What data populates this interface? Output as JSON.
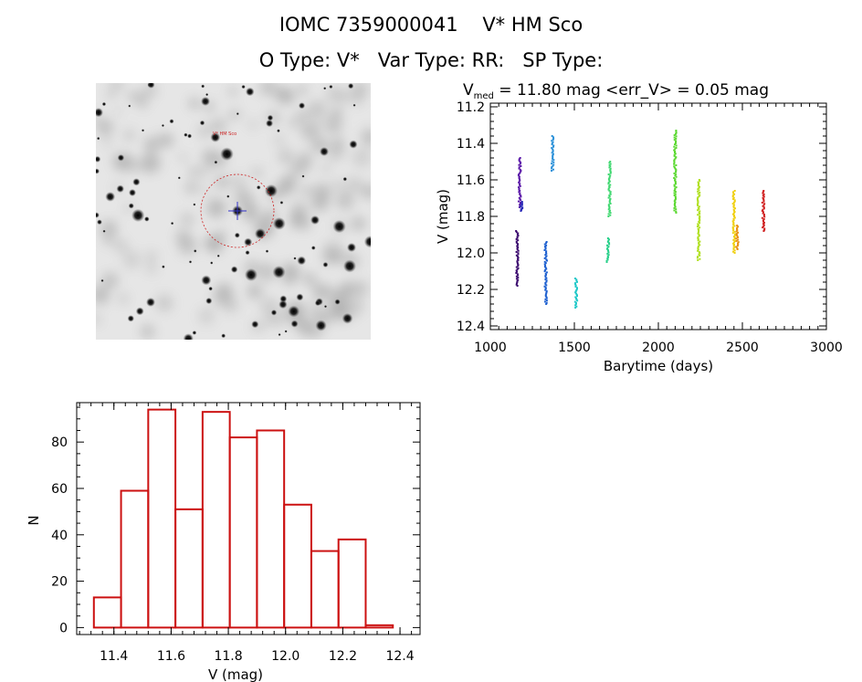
{
  "header": {
    "line1": "IOMC 7359000041    V* HM Sco",
    "line2": "O Type: V*   Var Type: RR:   SP Type:"
  },
  "image_panel": {
    "target_label": "V* HM Sco"
  },
  "colors": {
    "histogram": "#cc1111",
    "axes": "#000000"
  },
  "chart_data": [
    {
      "type": "scatter",
      "title": "V_med = 11.80 mag <err_V> = 0.05 mag",
      "title_main": "V",
      "title_sub": "med",
      "title_rest": " = 11.80 mag <err_V> = 0.05 mag",
      "xlabel": "Barytime (days)",
      "ylabel": "V (mag)",
      "xlim": [
        1000,
        3000
      ],
      "ylim": [
        12.42,
        11.18
      ],
      "y_inverted": true,
      "xticks": [
        "1000",
        "1500",
        "2000",
        "2500",
        "3000"
      ],
      "yticks": [
        "11.2",
        "11.4",
        "11.6",
        "11.8",
        "12.0",
        "12.2",
        "12.4"
      ],
      "series": [
        {
          "color": "#3b0a6e",
          "x": 1160,
          "y_range": [
            11.88,
            12.18
          ]
        },
        {
          "color": "#5a18a8",
          "x": 1175,
          "y_range": [
            11.48,
            11.75
          ]
        },
        {
          "color": "#2a2ab8",
          "x": 1185,
          "y_range": [
            11.72,
            11.77
          ]
        },
        {
          "color": "#1e60d0",
          "x": 1330,
          "y_range": [
            11.94,
            12.28
          ]
        },
        {
          "color": "#2a90d8",
          "x": 1370,
          "y_range": [
            11.36,
            11.55
          ]
        },
        {
          "color": "#20c8c8",
          "x": 1510,
          "y_range": [
            12.14,
            12.3
          ]
        },
        {
          "color": "#28d08a",
          "x": 1700,
          "y_range": [
            11.92,
            12.05
          ]
        },
        {
          "color": "#40d870",
          "x": 1710,
          "y_range": [
            11.5,
            11.8
          ]
        },
        {
          "color": "#5ad830",
          "x": 2100,
          "y_range": [
            11.33,
            11.78
          ]
        },
        {
          "color": "#b0e020",
          "x": 2240,
          "y_range": [
            11.6,
            12.04
          ]
        },
        {
          "color": "#f0d010",
          "x": 2450,
          "y_range": [
            11.66,
            12.0
          ]
        },
        {
          "color": "#e89010",
          "x": 2470,
          "y_range": [
            11.85,
            11.98
          ]
        },
        {
          "color": "#d02020",
          "x": 2625,
          "y_range": [
            11.66,
            11.88
          ]
        }
      ]
    },
    {
      "type": "bar",
      "xlabel": "V (mag)",
      "ylabel": "N",
      "xlim": [
        11.27,
        12.47
      ],
      "ylim": [
        -3,
        97
      ],
      "xticks": [
        "11.4",
        "11.6",
        "11.8",
        "12.0",
        "12.2",
        "12.4"
      ],
      "yticks": [
        "0",
        "20",
        "40",
        "60",
        "80"
      ],
      "bin_edges": [
        11.33,
        11.425,
        11.52,
        11.615,
        11.71,
        11.805,
        11.9,
        11.995,
        12.09,
        12.185,
        12.28,
        12.375
      ],
      "values": [
        13,
        59,
        94,
        51,
        93,
        82,
        85,
        53,
        33,
        38,
        1
      ]
    }
  ]
}
